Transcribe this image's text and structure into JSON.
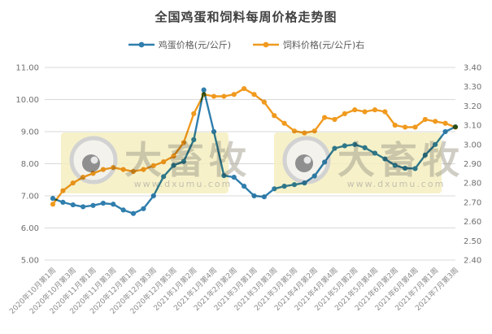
{
  "title": "全国鸡蛋和饲料每周价格走势图",
  "legend": {
    "items": [
      {
        "label": "鸡蛋价格(元/公斤)",
        "color": "#2F7EAD"
      },
      {
        "label": "饲料价格(元/公斤)右",
        "color": "#F09A1F"
      }
    ]
  },
  "watermark": {
    "brand": "大畜牧",
    "url": "www.dxumu.com"
  },
  "colors": {
    "egg_line": "#2F7EAD",
    "feed_line": "#F09A1F",
    "grid": "#d9d9d9",
    "axis_text": "#6e6e6e",
    "x_text": "#8c8c8c",
    "watermark_bg": "#f5efc0"
  },
  "chart_data": {
    "type": "line",
    "title": "全国鸡蛋和饲料每周价格走势图",
    "grid": true,
    "legend_position": "top",
    "x_tick_labels": [
      "2020年10月第1周",
      "2020年10月第3周",
      "2020年11月第1周",
      "2020年11月第3周",
      "2020年12月第1周",
      "2020年12月第3周",
      "2020年12月第5周",
      "2021年1月第2周",
      "2021年1月第4周",
      "2021年2月第2周",
      "2021年3月第1周",
      "2021年3月第3周",
      "2021年3月第5周",
      "2021年4月第2周",
      "2021年4月第4周",
      "2021年5月第2周",
      "2021年5月第4周",
      "2021年6月第2周",
      "2021年6月第4周",
      "2021年7月第1周",
      "2021年7月第3周"
    ],
    "label_interval": 2,
    "left_axis": {
      "min": 5.0,
      "max": 11.0,
      "step": 1.0,
      "decimals": 2
    },
    "right_axis": {
      "min": 2.4,
      "max": 3.4,
      "step": 0.1,
      "decimals": 2
    },
    "series": [
      {
        "name": "鸡蛋价格(元/公斤)",
        "axis": "left",
        "color": "#2F7EAD",
        "values": [
          6.92,
          6.8,
          6.72,
          6.66,
          6.7,
          6.77,
          6.74,
          6.56,
          6.45,
          6.6,
          7.0,
          7.6,
          7.95,
          8.07,
          8.75,
          10.3,
          9.0,
          7.63,
          7.58,
          7.3,
          7.0,
          6.97,
          7.22,
          7.3,
          7.35,
          7.4,
          7.62,
          8.05,
          8.48,
          8.56,
          8.6,
          8.5,
          8.33,
          8.15,
          7.95,
          7.86,
          7.85,
          8.27,
          8.6,
          9.0,
          9.15
        ]
      },
      {
        "name": "饲料价格(元/公斤)右",
        "axis": "right",
        "color": "#F09A1F",
        "values": [
          2.69,
          2.76,
          2.8,
          2.83,
          2.85,
          2.87,
          2.88,
          2.87,
          2.86,
          2.87,
          2.89,
          2.91,
          2.94,
          3.01,
          3.16,
          3.26,
          3.25,
          3.25,
          3.26,
          3.29,
          3.26,
          3.22,
          3.15,
          3.11,
          3.07,
          3.06,
          3.07,
          3.14,
          3.13,
          3.16,
          3.18,
          3.17,
          3.18,
          3.17,
          3.1,
          3.09,
          3.09,
          3.13,
          3.12,
          3.11,
          3.09
        ]
      }
    ]
  }
}
